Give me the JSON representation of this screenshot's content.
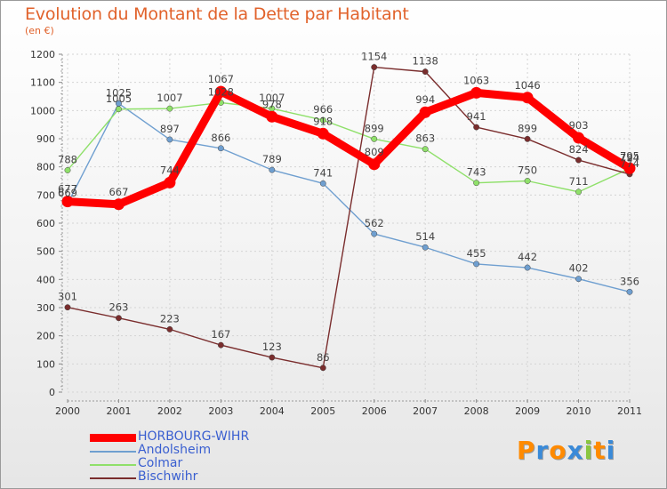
{
  "header": {
    "title": "Evolution du Montant de la Dette par Habitant",
    "subtitle": "(en €)"
  },
  "chart_data": {
    "type": "line",
    "title": "Evolution du Montant de la Dette par Habitant",
    "subtitle": "(en €)",
    "xlabel": "",
    "ylabel": "",
    "x": [
      "2000",
      "2001",
      "2002",
      "2003",
      "2004",
      "2005",
      "2006",
      "2007",
      "2008",
      "2009",
      "2010",
      "2011"
    ],
    "ylim": [
      0,
      1200
    ],
    "yticks": [
      0,
      100,
      200,
      300,
      400,
      500,
      600,
      700,
      800,
      900,
      1000,
      1100,
      1200
    ],
    "grid": true,
    "legend": "bottom-left",
    "series": [
      {
        "name": "Andolsheim",
        "color": "#6f9fd0",
        "values": [
          669,
          1025,
          897,
          866,
          789,
          741,
          562,
          514,
          455,
          442,
          402,
          356
        ]
      },
      {
        "name": "Colmar",
        "color": "#8fe06a",
        "values": [
          788,
          1005,
          1007,
          1028,
          1007,
          966,
          899,
          863,
          743,
          750,
          711,
          794
        ]
      },
      {
        "name": "Bischwihr",
        "color": "#7a2d2d",
        "values": [
          301,
          263,
          223,
          167,
          123,
          86,
          1154,
          1138,
          941,
          899,
          824,
          774
        ]
      },
      {
        "name": "HORBOURG-WIHR",
        "color": "#ff0000",
        "values": [
          677,
          667,
          744,
          1067,
          978,
          918,
          809,
          994,
          1063,
          1046,
          903,
          795
        ]
      }
    ]
  },
  "legend": {
    "items": [
      {
        "name": "HORBOURG-WIHR",
        "color": "#ff0000",
        "thick": true
      },
      {
        "name": "Andolsheim",
        "color": "#6f9fd0",
        "thick": false
      },
      {
        "name": "Colmar",
        "color": "#8fe06a",
        "thick": false
      },
      {
        "name": "Bischwihr",
        "color": "#7a2d2d",
        "thick": false
      }
    ]
  },
  "logo": {
    "text": "Proxiti",
    "letter_colors": [
      "#ff8a00",
      "#3a8ad8",
      "#ff8a00",
      "#3a8ad8",
      "#8ac640",
      "#ff8a00",
      "#3a8ad8"
    ]
  }
}
